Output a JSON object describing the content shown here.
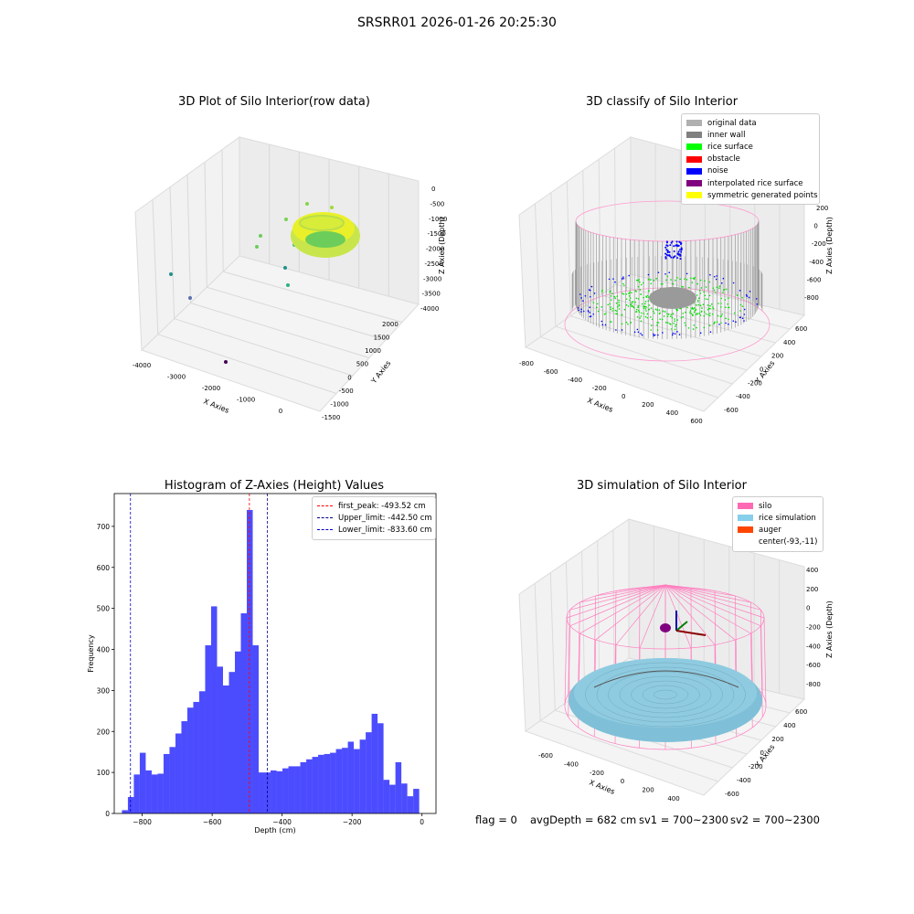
{
  "figure": {
    "suptitle": "SRSRR01 2026-01-26 20:25:30",
    "footer": {
      "flag": "flag = 0",
      "avg_depth": "avgDepth = 682 cm",
      "sv1": "sv1 = 700~2300",
      "sv2": "sv2 = 700~2300"
    }
  },
  "panels": {
    "raw": {
      "title": "3D Plot of Silo Interior(row data)",
      "xlabel": "X Axies",
      "ylabel": "Y Axies",
      "zlabel": "Z Axies (Depth)",
      "xticks": [
        "-4000",
        "-3000",
        "-2000",
        "-1000",
        "0"
      ],
      "yticks": [
        "2000",
        "1500",
        "1000",
        "500",
        "0",
        "-500",
        "-1000",
        "-1500"
      ],
      "zticks": [
        "0",
        "-500",
        "-1000",
        "-1500",
        "-2000",
        "-2500",
        "-3000",
        "-3500",
        "-4000"
      ],
      "colors": {
        "low": "#440154",
        "mid": "#21918c",
        "high": "#fde725"
      }
    },
    "classify": {
      "title": "3D classify of Silo Interior",
      "xlabel": "X Axies",
      "ylabel": "Y Axies",
      "zlabel": "Z Axies (Depth)",
      "xticks": [
        "-800",
        "-600",
        "-400",
        "-200",
        "0",
        "200",
        "400",
        "600"
      ],
      "yticks": [
        "600",
        "400",
        "200",
        "0",
        "-200",
        "-400",
        "-600"
      ],
      "zticks": [
        "200",
        "0",
        "-200",
        "-400",
        "-600",
        "-800"
      ],
      "legend": [
        {
          "label": "original data",
          "color": "#b0b0b0"
        },
        {
          "label": "inner wall",
          "color": "#808080"
        },
        {
          "label": "rice surface",
          "color": "#00ff00"
        },
        {
          "label": "obstacle",
          "color": "#ff0000"
        },
        {
          "label": "noise",
          "color": "#0000ff"
        },
        {
          "label": "interpolated rice surface",
          "color": "#800080"
        },
        {
          "label": "symmetric generated points",
          "color": "#ffff00"
        }
      ]
    },
    "simulation": {
      "title": "3D simulation of Silo Interior",
      "xlabel": "X Axies",
      "ylabel": "Y Axies",
      "zlabel": "Z Axies (Depth)",
      "xticks": [
        "-600",
        "-400",
        "-200",
        "0",
        "200",
        "400"
      ],
      "yticks": [
        "600",
        "400",
        "200",
        "0",
        "-200",
        "-400",
        "-600"
      ],
      "zticks": [
        "400",
        "200",
        "0",
        "-200",
        "-400",
        "-600",
        "-800"
      ],
      "legend": [
        {
          "label": "silo",
          "color": "#ff69b4"
        },
        {
          "label": "rice simulation",
          "color": "#87ceeb"
        },
        {
          "label": "auger",
          "color": "#ff4500"
        },
        {
          "label": "center(-93,-11)",
          "color": ""
        }
      ]
    }
  },
  "chart_data": {
    "type": "bar",
    "title": "Histogram of Z-Axies (Height) Values",
    "xlabel": "Depth (cm)",
    "ylabel": "Frequency",
    "xlim": [
      -880,
      40
    ],
    "ylim": [
      0,
      780
    ],
    "xticks": [
      -800,
      -600,
      -400,
      -200,
      0
    ],
    "yticks": [
      0,
      100,
      200,
      300,
      400,
      500,
      600,
      700
    ],
    "bin_width": 17,
    "bin_start": -858,
    "values": [
      8,
      40,
      95,
      148,
      105,
      95,
      97,
      145,
      162,
      195,
      225,
      258,
      272,
      298,
      410,
      505,
      358,
      312,
      345,
      395,
      488,
      740,
      410,
      100,
      100,
      105,
      103,
      110,
      115,
      115,
      125,
      132,
      138,
      143,
      145,
      148,
      157,
      160,
      175,
      157,
      180,
      198,
      243,
      220,
      82,
      70,
      125,
      73,
      42,
      60
    ],
    "vlines": [
      {
        "label": "first_peak: -493.52 cm",
        "x": -493.52,
        "color": "#ff0000"
      },
      {
        "label": "Upper_limit: -442.50 cm",
        "x": -442.5,
        "color": "#00008b"
      },
      {
        "label": "Lower_limit: -833.60 cm",
        "x": -833.6,
        "color": "#0000cd"
      }
    ],
    "bar_color": "#0000ff"
  }
}
